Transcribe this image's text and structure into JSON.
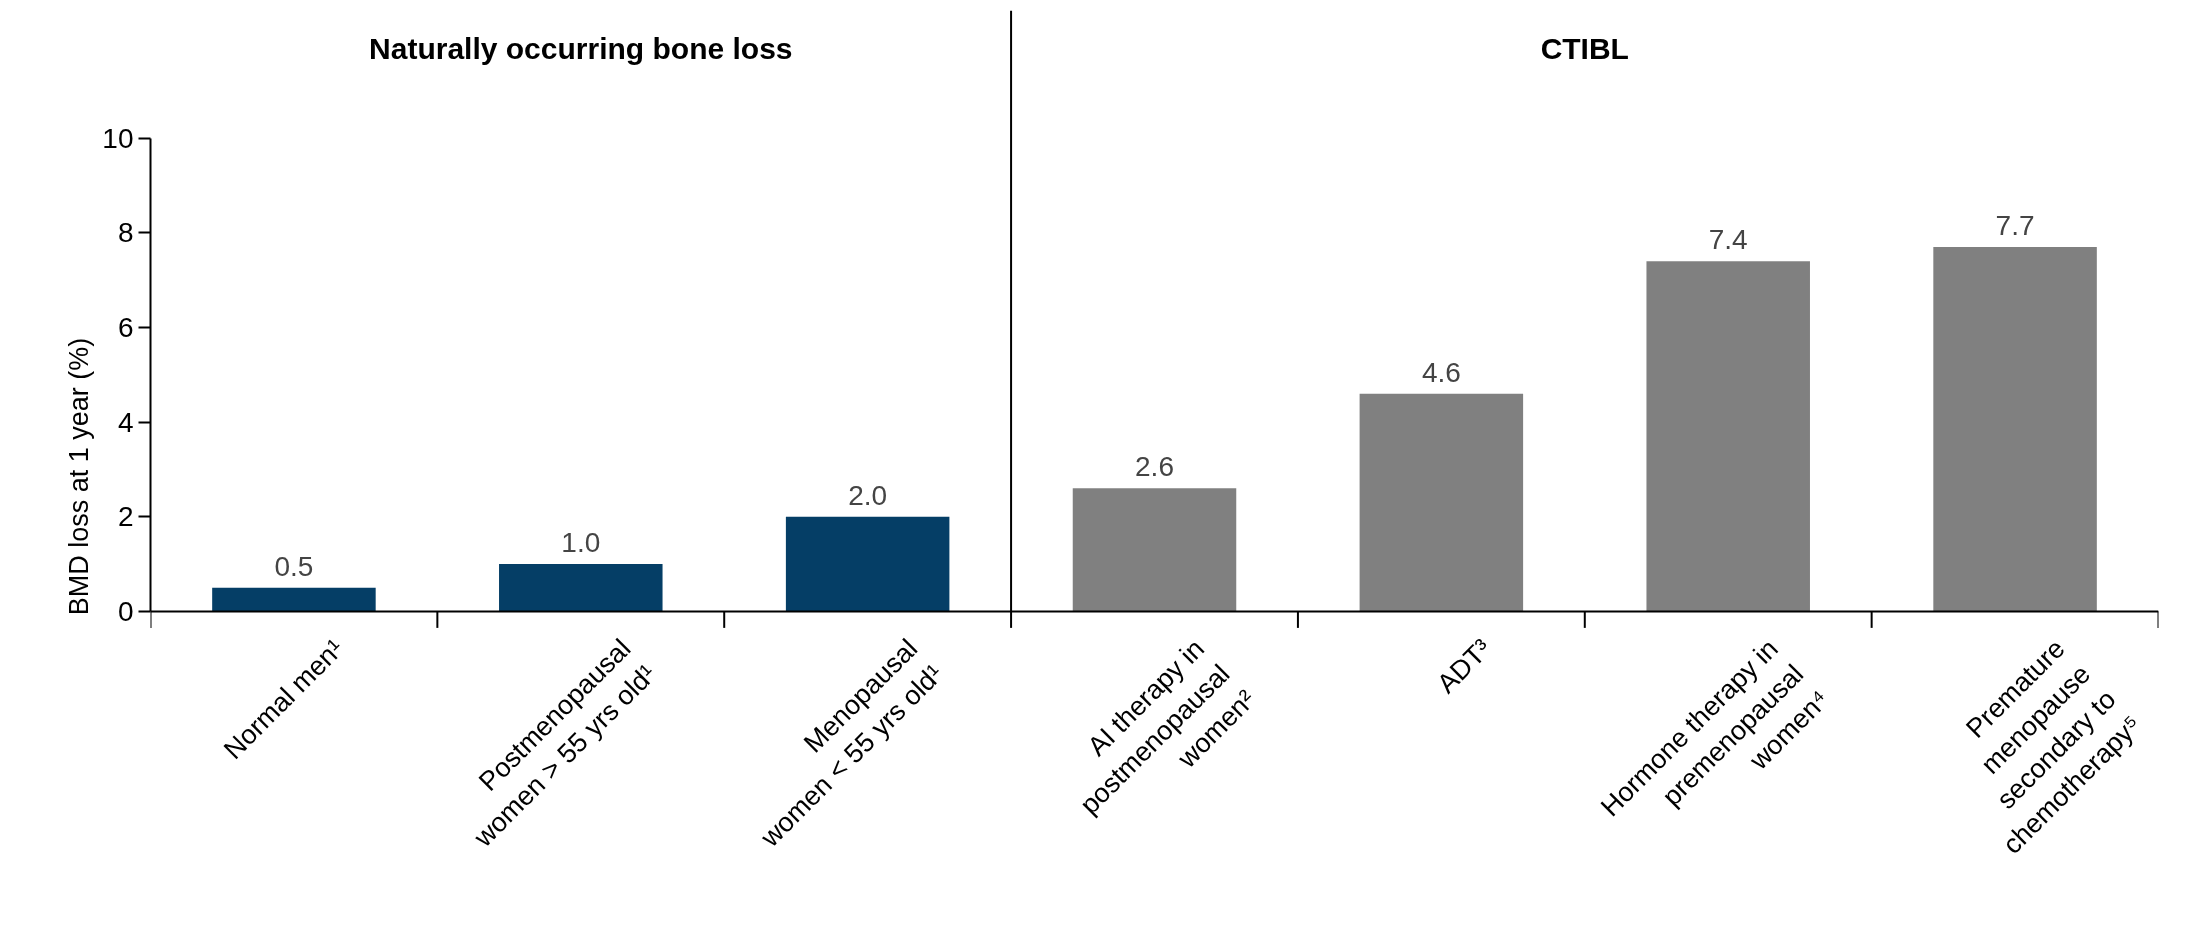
{
  "chart_data": {
    "type": "bar",
    "ylabel": "BMD loss at 1 year (%)",
    "categories": [
      "Normal men¹",
      "Postmenopausal\nwomen > 55 yrs old¹",
      "Menopausal\nwomen < 55 yrs old¹",
      "AI therapy in\npostmenopausal\nwomen²",
      "ADT³",
      "Hormone therapy in\npremenopausal\nwomen⁴",
      "Premature\nmenopause\nsecondary to\nchemotherapy⁵"
    ],
    "values": [
      0.5,
      1.0,
      2.0,
      2.6,
      4.6,
      7.4,
      7.7
    ],
    "colors": [
      "#053e66",
      "#053e66",
      "#053e66",
      "#808080",
      "#808080",
      "#808080",
      "#808080"
    ],
    "value_labels": [
      "0.5",
      "1.0",
      "2.0",
      "2.6",
      "4.6",
      "7.4",
      "7.7"
    ],
    "ylim": [
      0,
      10
    ],
    "yticks": [
      0,
      2,
      4,
      6,
      8,
      10
    ],
    "grid": false,
    "annotations": [
      "Naturally occurring bone loss",
      "CTIBL"
    ]
  }
}
